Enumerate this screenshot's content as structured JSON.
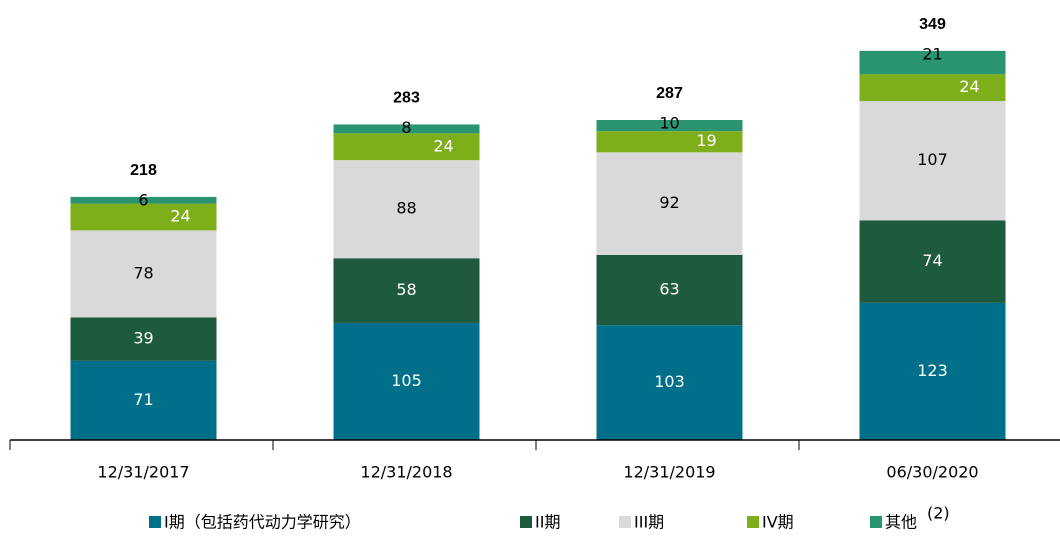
{
  "chart_data": {
    "type": "stacked_bar",
    "categories": [
      "12/31/2017",
      "12/31/2018",
      "12/31/2019",
      "06/30/2020"
    ],
    "series": [
      {
        "name": "I期（包括药代动力学研究）",
        "color": "#00708a",
        "values": [
          71,
          105,
          103,
          123
        ]
      },
      {
        "name": "II期",
        "color": "#1e5a3e",
        "values": [
          39,
          58,
          63,
          74
        ]
      },
      {
        "name": "III期",
        "color": "#d9d9d9",
        "values": [
          78,
          88,
          92,
          107
        ]
      },
      {
        "name": "IV期",
        "color": "#7fae1b",
        "values": [
          24,
          24,
          19,
          24
        ]
      },
      {
        "name": "其他",
        "color": "#2a9470",
        "values": [
          6,
          8,
          10,
          21
        ]
      }
    ],
    "totals": [
      218,
      283,
      287,
      349
    ],
    "legend_note": "(2)",
    "ylim": [
      0,
      400
    ],
    "legend": "bottom"
  }
}
